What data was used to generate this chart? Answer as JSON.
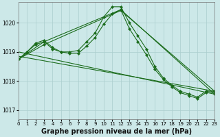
{
  "background_color": "#cce8e8",
  "grid_color": "#aacece",
  "line_color": "#1a6b1a",
  "xlabel": "Graphe pression niveau de la mer (hPa)",
  "xlabel_fontsize": 7,
  "xlim": [
    0,
    23
  ],
  "ylim": [
    1016.7,
    1020.7
  ],
  "yticks": [
    1017,
    1018,
    1019,
    1020
  ],
  "xticks": [
    0,
    1,
    2,
    3,
    4,
    5,
    6,
    7,
    8,
    9,
    10,
    11,
    12,
    13,
    14,
    15,
    16,
    17,
    18,
    19,
    20,
    21,
    22,
    23
  ],
  "series_curve1": {
    "x": [
      0,
      1,
      2,
      3,
      4,
      5,
      6,
      7,
      8,
      9,
      10,
      11,
      12,
      13,
      14,
      15,
      16,
      17,
      18,
      19,
      20,
      21,
      22,
      23
    ],
    "y": [
      1018.75,
      1019.0,
      1019.3,
      1019.4,
      1019.15,
      1019.0,
      1019.0,
      1019.05,
      1019.35,
      1019.65,
      1020.2,
      1020.55,
      1020.55,
      1020.0,
      1019.55,
      1019.1,
      1018.5,
      1018.1,
      1017.85,
      1017.65,
      1017.55,
      1017.45,
      1017.65,
      1017.65
    ]
  },
  "series_curve2": {
    "x": [
      0,
      1,
      2,
      3,
      4,
      5,
      6,
      7,
      8,
      9,
      10,
      11,
      12,
      13,
      14,
      15,
      16,
      17,
      18,
      19,
      20,
      21,
      22,
      23
    ],
    "y": [
      1018.75,
      1019.0,
      1019.25,
      1019.35,
      1019.1,
      1019.0,
      1018.95,
      1018.95,
      1019.2,
      1019.5,
      1019.95,
      1020.3,
      1020.45,
      1019.8,
      1019.35,
      1018.9,
      1018.4,
      1018.05,
      1017.8,
      1017.6,
      1017.5,
      1017.4,
      1017.6,
      1017.6
    ]
  },
  "series_line1": {
    "x": [
      0,
      23
    ],
    "y": [
      1019.0,
      1017.55
    ]
  },
  "series_line2": {
    "x": [
      0,
      23
    ],
    "y": [
      1018.85,
      1017.65
    ]
  },
  "series_diag1": {
    "x": [
      0,
      3,
      12,
      23
    ],
    "y": [
      1018.75,
      1019.35,
      1020.45,
      1017.55
    ]
  },
  "series_diag2": {
    "x": [
      0,
      3,
      12,
      23
    ],
    "y": [
      1018.75,
      1019.25,
      1020.42,
      1017.65
    ]
  }
}
